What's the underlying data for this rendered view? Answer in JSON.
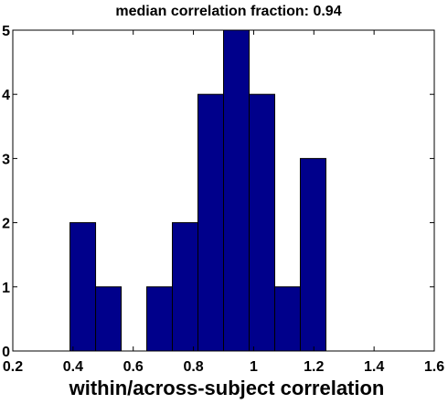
{
  "chart_data": {
    "type": "bar",
    "title": "median correlation fraction: 0.94",
    "xlabel": "within/across-subject correlation",
    "ylabel": "",
    "bar_color": "#00008B",
    "edge_color": "#000000",
    "xlim": [
      0.2,
      1.6
    ],
    "ylim": [
      0,
      5
    ],
    "grid": false,
    "xticks": [
      "0.2",
      "0.4",
      "0.6",
      "0.8",
      "1",
      "1.2",
      "1.4",
      "1.6"
    ],
    "yticks": [
      "0",
      "1",
      "2",
      "3",
      "4",
      "5"
    ],
    "bins": [
      {
        "left": 0.39,
        "right": 0.475,
        "value": 2
      },
      {
        "left": 0.475,
        "right": 0.56,
        "value": 1
      },
      {
        "left": 0.56,
        "right": 0.645,
        "value": 0
      },
      {
        "left": 0.645,
        "right": 0.73,
        "value": 1
      },
      {
        "left": 0.73,
        "right": 0.815,
        "value": 2
      },
      {
        "left": 0.815,
        "right": 0.9,
        "value": 4
      },
      {
        "left": 0.9,
        "right": 0.985,
        "value": 5
      },
      {
        "left": 0.985,
        "right": 1.07,
        "value": 4
      },
      {
        "left": 1.07,
        "right": 1.155,
        "value": 1
      },
      {
        "left": 1.155,
        "right": 1.24,
        "value": 3
      }
    ]
  }
}
